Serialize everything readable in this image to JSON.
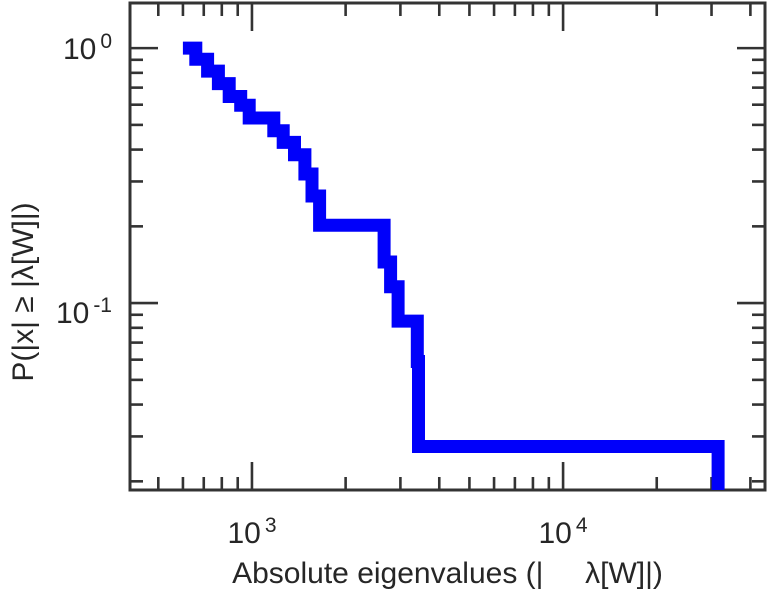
{
  "chart_data": {
    "type": "line",
    "subtype": "step-ccdf",
    "title": "",
    "xlabel": "Absolute eigenvalues (|     λ[W]|)",
    "ylabel": "P(|x| ≥ |λ[W]|)",
    "x_scale": "log",
    "y_scale": "log",
    "x_range_log10": {
      "min": 2.608,
      "max": 4.649
    },
    "y_range_log10": {
      "min": -1.733,
      "max": 0.177
    },
    "x_major_ticks": [
      {
        "value": 1000,
        "base": "10",
        "exp": "3"
      },
      {
        "value": 10000,
        "base": "10",
        "exp": "4"
      }
    ],
    "y_major_ticks": [
      {
        "value": 1,
        "base": "10",
        "exp": "0"
      },
      {
        "value": 0.1,
        "base": "10",
        "exp": "-1"
      }
    ],
    "x_minor_ticks": [
      500,
      600,
      700,
      800,
      900,
      2000,
      3000,
      4000,
      5000,
      6000,
      7000,
      8000,
      9000,
      20000,
      30000,
      40000
    ],
    "y_minor_ticks": [
      0.9,
      0.8,
      0.7,
      0.6,
      0.5,
      0.4,
      0.3,
      0.2,
      0.09,
      0.08,
      0.07,
      0.06,
      0.05,
      0.04,
      0.03,
      0.02
    ],
    "grid": false,
    "legend": null,
    "line_color": "#0000fa",
    "line_width": 13,
    "axis_color": "#333333",
    "steps": [
      [
        600,
        1.0
      ],
      [
        660,
        0.905
      ],
      [
        720,
        0.813
      ],
      [
        780,
        0.726
      ],
      [
        845,
        0.646
      ],
      [
        920,
        0.597
      ],
      [
        980,
        0.532
      ],
      [
        1175,
        0.474
      ],
      [
        1260,
        0.427
      ],
      [
        1370,
        0.382
      ],
      [
        1480,
        0.321
      ],
      [
        1560,
        0.263
      ],
      [
        1650,
        0.202
      ],
      [
        2660,
        0.145
      ],
      [
        2790,
        0.116
      ],
      [
        2950,
        0.085
      ],
      [
        3400,
        0.059
      ],
      [
        3430,
        0.0274
      ]
    ],
    "max_eigenvalue": 31500
  }
}
